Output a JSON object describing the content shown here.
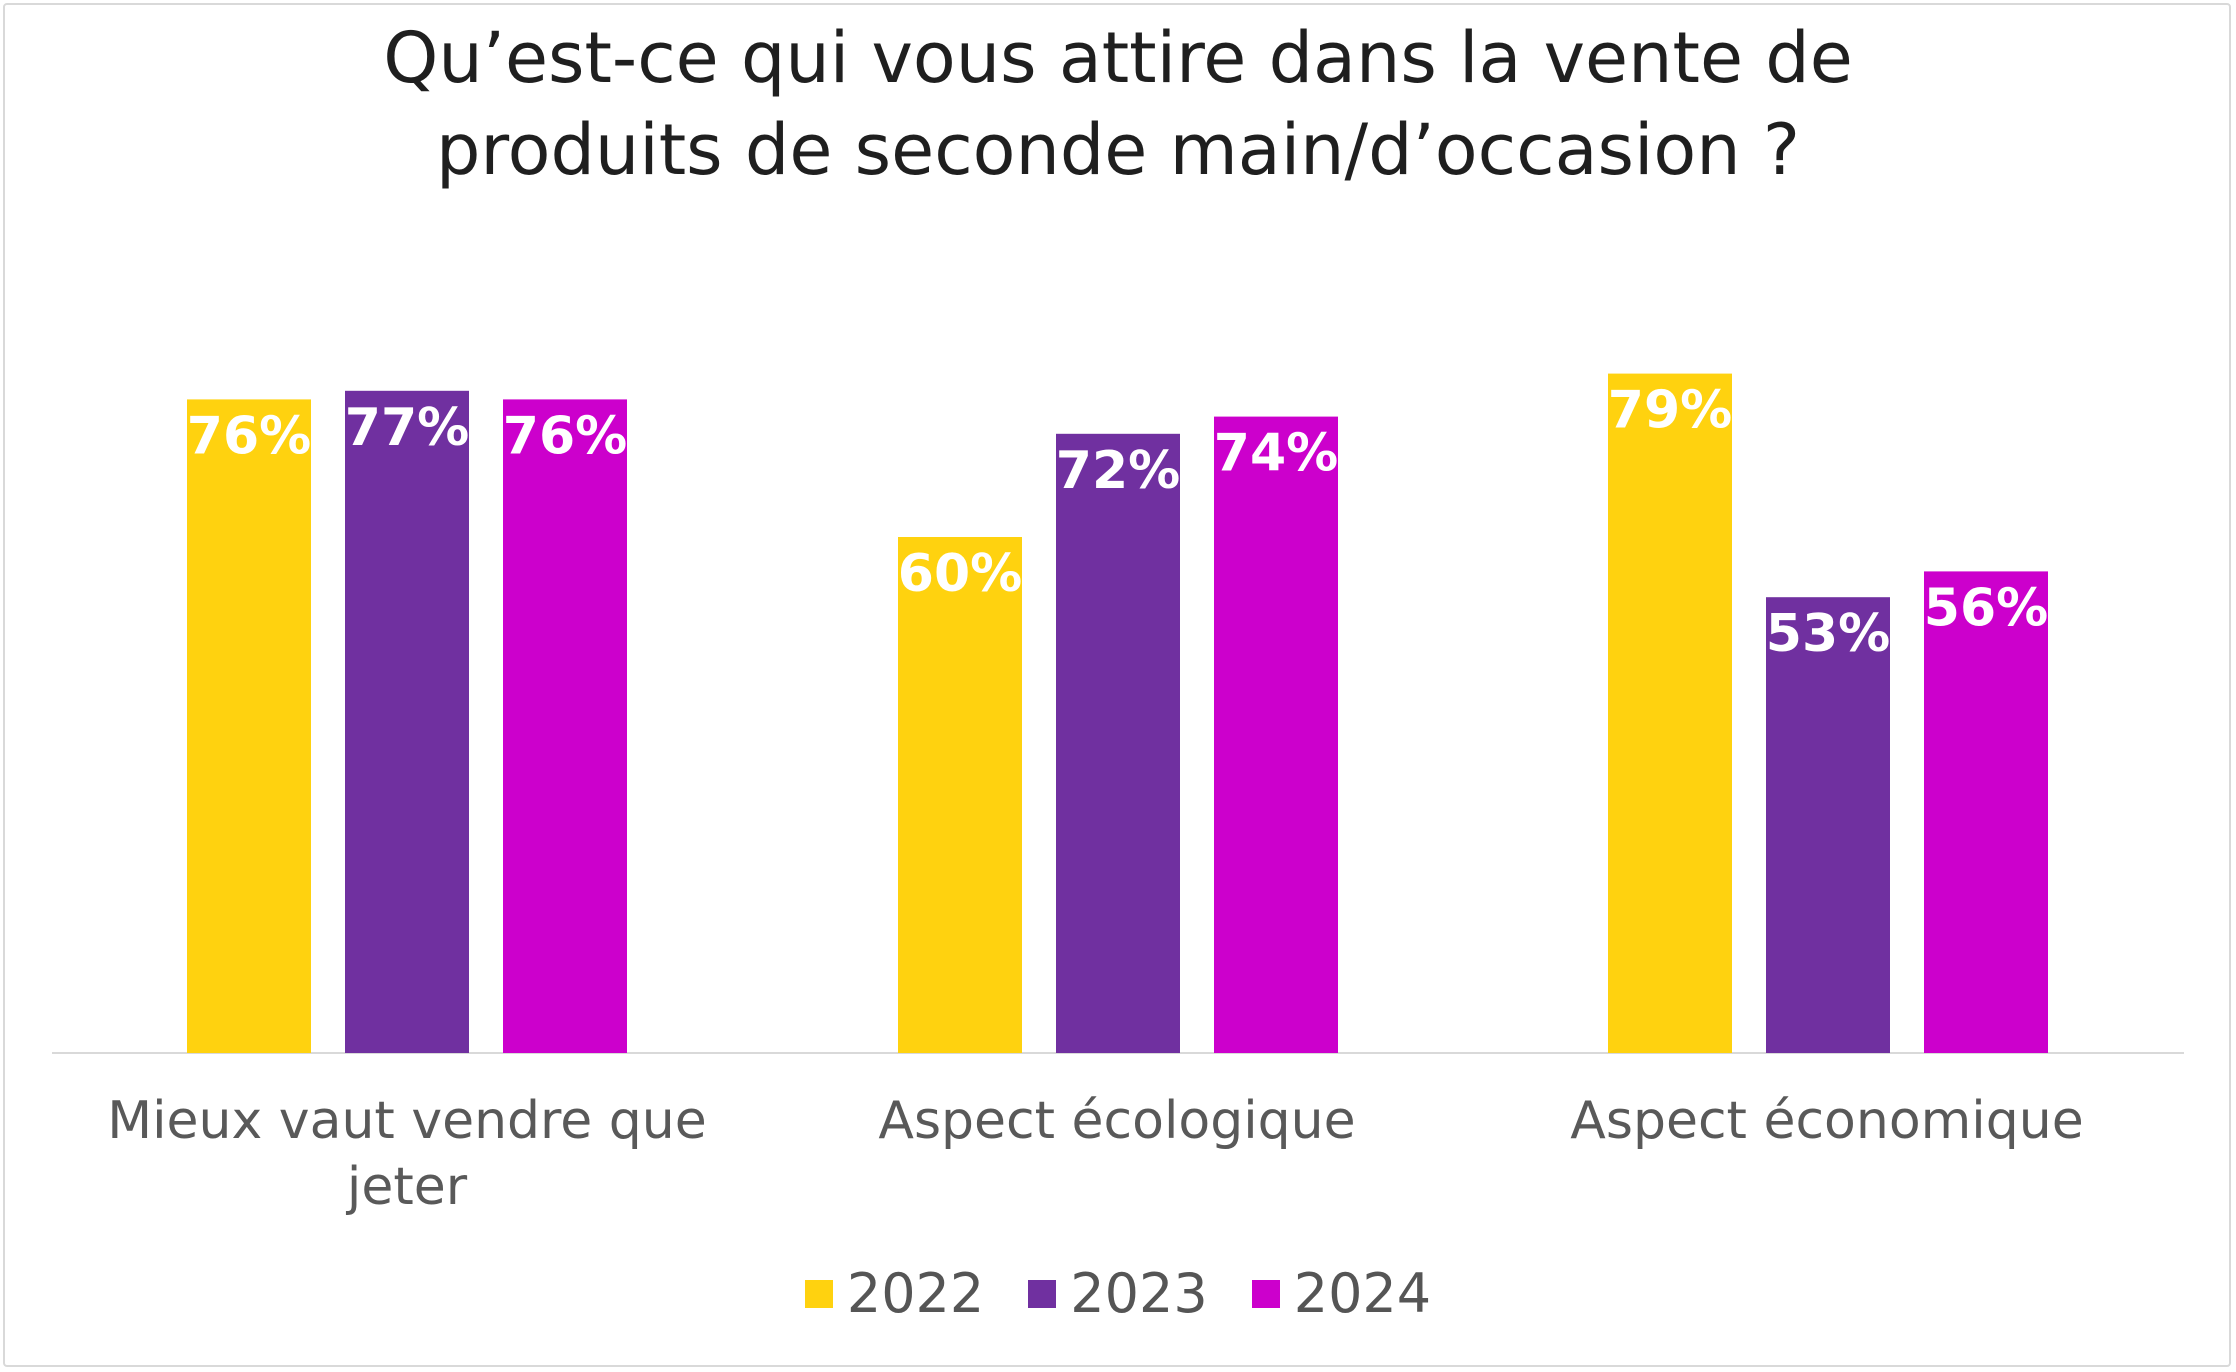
{
  "chart_data": {
    "type": "bar",
    "title_lines": [
      "Qu’est-ce qui vous attire dans la vente de",
      "produits de seconde main/d’occasion ?"
    ],
    "categories": [
      [
        "Mieux vaut vendre que",
        "jeter"
      ],
      [
        "Aspect écologique"
      ],
      [
        "Aspect économique"
      ]
    ],
    "series": [
      {
        "name": "2022",
        "color": "#FFD20F",
        "values": [
          76,
          60,
          79
        ],
        "labels": [
          "76%",
          "60%",
          "79%"
        ]
      },
      {
        "name": "2023",
        "color": "#7030A0",
        "values": [
          77,
          72,
          53
        ],
        "labels": [
          "77%",
          "72%",
          "53%"
        ]
      },
      {
        "name": "2024",
        "color": "#CC00CC",
        "values": [
          76,
          74,
          56
        ],
        "labels": [
          "76%",
          "74%",
          "56%"
        ]
      }
    ],
    "ylim": [
      0,
      100
    ],
    "grid": false,
    "legend_position": "bottom",
    "axis_color": "#d9d9d9",
    "category_label_color": "#595959"
  }
}
